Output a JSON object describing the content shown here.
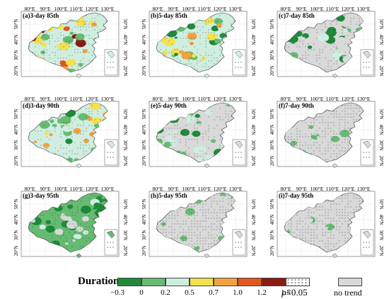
{
  "x_tick_labels": [
    "80°E",
    "90°E",
    "100°E",
    "110°E",
    "120°E",
    "130°E"
  ],
  "y_tick_labels": [
    "20°N",
    "30°N",
    "40°N",
    "50°N"
  ],
  "panels": [
    {
      "label": "(a)3-day 85th",
      "dominant": "increase-high"
    },
    {
      "label": "(b)5-day 85th",
      "dominant": "increase-mixed"
    },
    {
      "label": "(c)7-day 85th",
      "dominant": "no-trend-with-green"
    },
    {
      "label": "(d)3-day 90th",
      "dominant": "increase-mixed"
    },
    {
      "label": "(e)5-day 90th",
      "dominant": "no-trend-with-green"
    },
    {
      "label": "(f)7-day 90th",
      "dominant": "mostly-no-trend"
    },
    {
      "label": "(g)3-day 95th",
      "dominant": "green"
    },
    {
      "label": "(h)5-day 95th",
      "dominant": "mostly-no-trend"
    },
    {
      "label": "(i)7-day 95th",
      "dominant": "mostly-no-trend"
    }
  ],
  "legend": {
    "title": "Duration",
    "ticks": [
      "−0.3",
      "0",
      "0.2",
      "0.5",
      "0.7",
      "1.0",
      "1.2",
      "1.5"
    ],
    "colors": [
      "#1f8a3a",
      "#66bb72",
      "#cfeee0",
      "#f3e24d",
      "#f1a33f",
      "#e0581e",
      "#8b1a12"
    ],
    "significance_label_prefix": "p",
    "significance_label_suffix": "<0.05",
    "no_trend_label": "no trend",
    "no_trend_color": "#d9d9d9"
  }
}
